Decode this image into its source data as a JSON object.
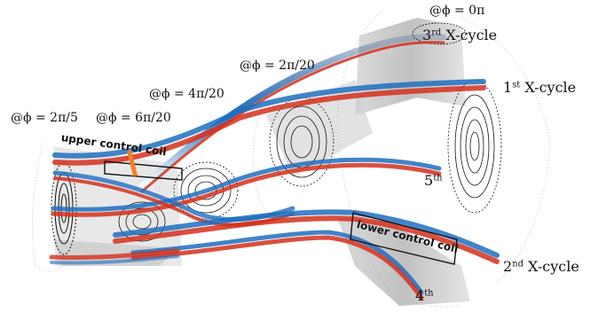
{
  "phase_labels": {
    "phi0": "@ϕ = 0π",
    "phi_2pi_20": "@ϕ = 2π/20",
    "phi_4pi_20": "@ϕ = 4π/20",
    "phi_6pi_20": "@ϕ = 6π/20",
    "phi_2pi_5": "@ϕ = 2π/5"
  },
  "cycle_labels": {
    "first_main": "1",
    "first_sup": "st",
    "first_rest": " X-cycle",
    "second_main": "2",
    "second_sup": "nd",
    "second_rest": " X-cycle",
    "third_main": "3",
    "third_sup": "rd",
    "third_rest": " X-cycle",
    "fourth_main": "4",
    "fourth_sup": "th",
    "fifth_main": "5",
    "fifth_sup": "th"
  },
  "coil_labels": {
    "upper": "upper control coil",
    "lower": "lower control coil"
  },
  "colors": {
    "blue_band": "#1f5fa8",
    "red_band": "#c62a1a",
    "surface_gray": "#9a9a9a",
    "poincare_black": "#111111",
    "arrow_orange": "#f07f2a"
  }
}
